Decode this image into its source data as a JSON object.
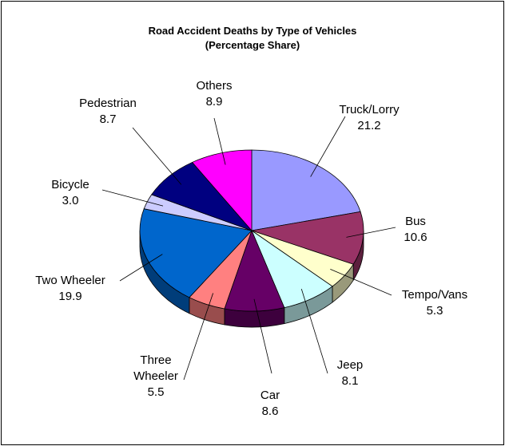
{
  "chart_data": {
    "type": "pie3d",
    "title": "Road Accident Deaths by Type of Vehicles",
    "subtitle": "(Percentage Share)",
    "categories": [
      "Truck/Lorry",
      "Bus",
      "Tempo/Vans",
      "Jeep",
      "Car",
      "Three Wheeler",
      "Two Wheeler",
      "Bicycle",
      "Pedestrian",
      "Others"
    ],
    "values": [
      21.2,
      10.6,
      5.3,
      8.1,
      8.6,
      5.5,
      19.9,
      3.0,
      8.7,
      8.9
    ],
    "value_labels": [
      "21.2",
      "10.6",
      "5.3",
      "8.1",
      "8.6",
      "5.5",
      "19.9",
      "3.0",
      "8.7",
      "8.9"
    ],
    "colors": [
      "#9999ff",
      "#993366",
      "#ffffcc",
      "#ccffff",
      "#660066",
      "#ff8080",
      "#0066cc",
      "#ccccff",
      "#000080",
      "#ff00ff"
    ]
  }
}
